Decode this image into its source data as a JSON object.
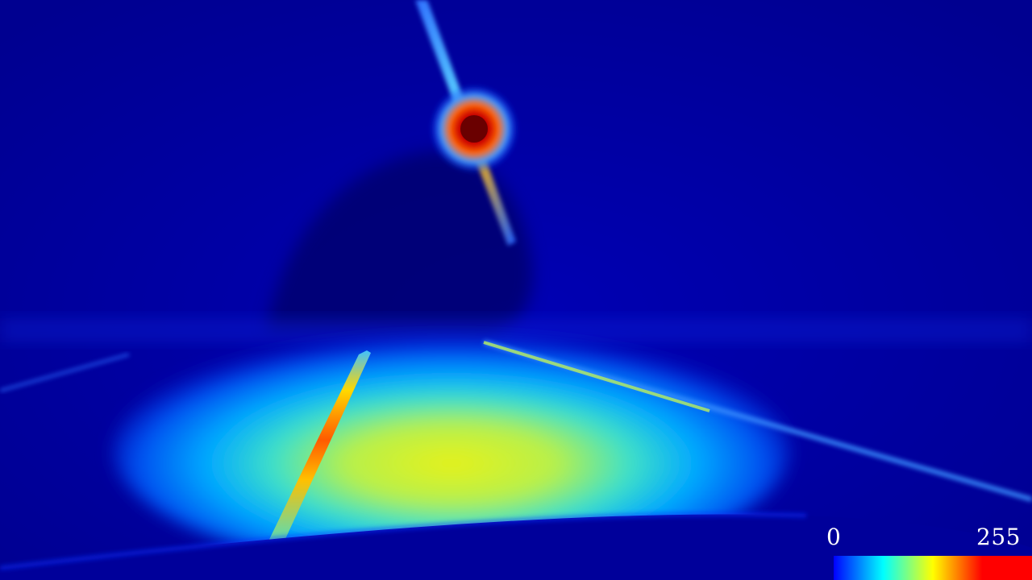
{
  "image": {
    "kind": "false-color intensity map of a night-time road scene",
    "colormap": "jet"
  },
  "colorbar": {
    "min_label": "0",
    "max_label": "255",
    "colors": [
      "#0000ff",
      "#00ffff",
      "#ffff00",
      "#ff0000",
      "#ff0000"
    ]
  },
  "scene_colors": {
    "background": "#00008c",
    "road_glow": "#dff21a",
    "lane_line_left": "#ff7a00",
    "street_lamp": "#d00000"
  }
}
